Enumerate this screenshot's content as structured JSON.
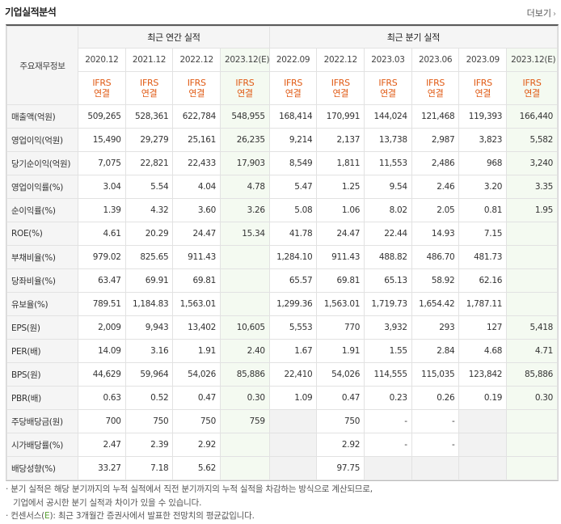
{
  "title": "기업실적분석",
  "more_label": "더보기",
  "header": {
    "row_label": "주요재무정보",
    "annual_label": "최근 연간 실적",
    "quarter_label": "최근 분기 실적",
    "annual_years": [
      "2020.12",
      "2021.12",
      "2022.12",
      "2023.12(E)"
    ],
    "quarter_years": [
      "2022.09",
      "2022.12",
      "2023.03",
      "2023.06",
      "2023.09",
      "2023.12(E)"
    ],
    "ifrs_top": "IFRS",
    "ifrs_bottom": "연결"
  },
  "rows": [
    {
      "label": "매출액(억원)",
      "values": [
        "509,265",
        "528,361",
        "622,784",
        "548,955",
        "168,414",
        "170,991",
        "144,024",
        "121,468",
        "119,393",
        "166,440"
      ]
    },
    {
      "label": "영업이익(억원)",
      "values": [
        "15,490",
        "29,279",
        "25,161",
        "26,235",
        "9,214",
        "2,137",
        "13,738",
        "2,987",
        "3,823",
        "5,582"
      ]
    },
    {
      "label": "당기순이익(억원)",
      "values": [
        "7,075",
        "22,821",
        "22,433",
        "17,903",
        "8,549",
        "1,811",
        "11,553",
        "2,486",
        "968",
        "3,240"
      ]
    },
    {
      "label": "영업이익률(%)",
      "values": [
        "3.04",
        "5.54",
        "4.04",
        "4.78",
        "5.47",
        "1.25",
        "9.54",
        "2.46",
        "3.20",
        "3.35"
      ]
    },
    {
      "label": "순이익률(%)",
      "values": [
        "1.39",
        "4.32",
        "3.60",
        "3.26",
        "5.08",
        "1.06",
        "8.02",
        "2.05",
        "0.81",
        "1.95"
      ]
    },
    {
      "label": "ROE(%)",
      "values": [
        "4.61",
        "20.29",
        "24.47",
        "15.34",
        "41.78",
        "24.47",
        "22.44",
        "14.93",
        "7.15",
        ""
      ]
    },
    {
      "label": "부채비율(%)",
      "values": [
        "979.02",
        "825.65",
        "911.43",
        "",
        "1,284.10",
        "911.43",
        "488.82",
        "486.70",
        "481.73",
        ""
      ]
    },
    {
      "label": "당좌비율(%)",
      "values": [
        "63.47",
        "69.91",
        "69.81",
        "",
        "65.57",
        "69.81",
        "65.13",
        "58.92",
        "62.16",
        ""
      ]
    },
    {
      "label": "유보율(%)",
      "values": [
        "789.51",
        "1,184.83",
        "1,563.01",
        "",
        "1,299.36",
        "1,563.01",
        "1,719.73",
        "1,654.42",
        "1,787.11",
        ""
      ]
    },
    {
      "label": "EPS(원)",
      "values": [
        "2,009",
        "9,943",
        "13,402",
        "10,605",
        "5,553",
        "770",
        "3,932",
        "293",
        "127",
        "5,418"
      ]
    },
    {
      "label": "PER(배)",
      "values": [
        "14.09",
        "3.16",
        "1.91",
        "2.40",
        "1.67",
        "1.91",
        "1.55",
        "2.84",
        "4.68",
        "4.71"
      ]
    },
    {
      "label": "BPS(원)",
      "values": [
        "44,629",
        "59,964",
        "54,026",
        "85,886",
        "22,410",
        "54,026",
        "114,555",
        "115,035",
        "123,842",
        "85,886"
      ]
    },
    {
      "label": "PBR(배)",
      "values": [
        "0.63",
        "0.52",
        "0.47",
        "0.30",
        "1.09",
        "0.47",
        "0.23",
        "0.26",
        "0.19",
        "0.30"
      ]
    },
    {
      "label": "주당배당금(원)",
      "values": [
        "700",
        "750",
        "750",
        "759",
        "",
        "750",
        "-",
        "-",
        "",
        ""
      ]
    },
    {
      "label": "시가배당률(%)",
      "values": [
        "2.47",
        "2.39",
        "2.92",
        "",
        "",
        "2.92",
        "-",
        "-",
        "",
        ""
      ]
    },
    {
      "label": "배당성향(%)",
      "values": [
        "33.27",
        "7.18",
        "5.62",
        "",
        "",
        "97.75",
        "",
        "",
        "",
        ""
      ]
    }
  ],
  "notes": {
    "line1": "· 분기 실적은 해당 분기까지의 누적 실적에서 직전 분기까지의 누적 실적을 차감하는 방식으로 계산되므로,",
    "line2": "기업에서 공시한 분기 실적과 차이가 있을 수 있습니다.",
    "line3_prefix": "· 컨센서스(",
    "line3_e": "E",
    "line3_suffix": "): 최근 3개월간 증권사에서 발표한 전망치의 평균값입니다."
  },
  "colors": {
    "ifrs": "#e05a14",
    "estimate_bg": "#f4faf1",
    "label_bg": "#f5f5f5",
    "empty_bg": "#f2f2f2"
  }
}
